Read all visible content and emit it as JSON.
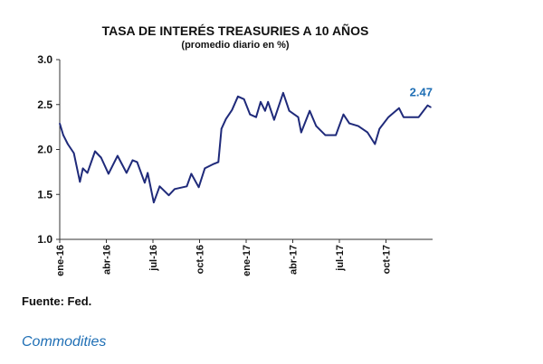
{
  "chart_data": {
    "type": "line",
    "title": "TASA DE INTERÉS TREASURIES A 10 AÑOS",
    "subtitle": "(promedio diario en %)",
    "xlabel": "",
    "ylabel": "",
    "ylim": [
      1.0,
      3.0
    ],
    "yticks": [
      "1.0",
      "1.5",
      "2.0",
      "2.5",
      "3.0"
    ],
    "xticks": [
      "ene-16",
      "abr-16",
      "jul-16",
      "oct-16",
      "ene-17",
      "abr-17",
      "jul-17",
      "oct-17"
    ],
    "x_unit": "months since ene-16",
    "xlim": [
      0,
      24
    ],
    "grid": false,
    "line_color": "#1f2a7a",
    "series": [
      {
        "name": "Treasuries 10 años",
        "x": [
          0,
          0.23,
          0.52,
          0.91,
          1.3,
          1.49,
          1.78,
          2.27,
          2.66,
          3.14,
          3.72,
          4.3,
          4.69,
          4.98,
          5.47,
          5.66,
          6.05,
          6.43,
          7.02,
          7.4,
          8.18,
          8.47,
          8.95,
          9.34,
          9.92,
          10.21,
          10.41,
          10.7,
          11.09,
          11.47,
          11.86,
          12.25,
          12.64,
          12.93,
          13.22,
          13.41,
          13.8,
          14.38,
          14.77,
          15.35,
          15.54,
          16.09,
          16.51,
          17.09,
          17.77,
          18.26,
          18.64,
          19.22,
          19.81,
          20.29,
          20.58,
          21.16,
          21.84,
          22.13,
          22.52,
          23.1,
          23.68,
          23.88
        ],
        "y": [
          2.29,
          2.16,
          2.06,
          1.96,
          1.64,
          1.79,
          1.74,
          1.98,
          1.91,
          1.73,
          1.93,
          1.74,
          1.88,
          1.86,
          1.63,
          1.74,
          1.41,
          1.59,
          1.49,
          1.56,
          1.59,
          1.73,
          1.58,
          1.79,
          1.84,
          1.86,
          2.23,
          2.34,
          2.44,
          2.59,
          2.56,
          2.39,
          2.36,
          2.53,
          2.43,
          2.53,
          2.33,
          2.63,
          2.43,
          2.36,
          2.19,
          2.43,
          2.26,
          2.16,
          2.16,
          2.39,
          2.29,
          2.26,
          2.19,
          2.06,
          2.23,
          2.36,
          2.46,
          2.36,
          2.36,
          2.36,
          2.49,
          2.47
        ]
      }
    ],
    "annotation": "2.47"
  },
  "footer": {
    "source": "Fuente: Fed.",
    "next_section": "Commodities"
  }
}
